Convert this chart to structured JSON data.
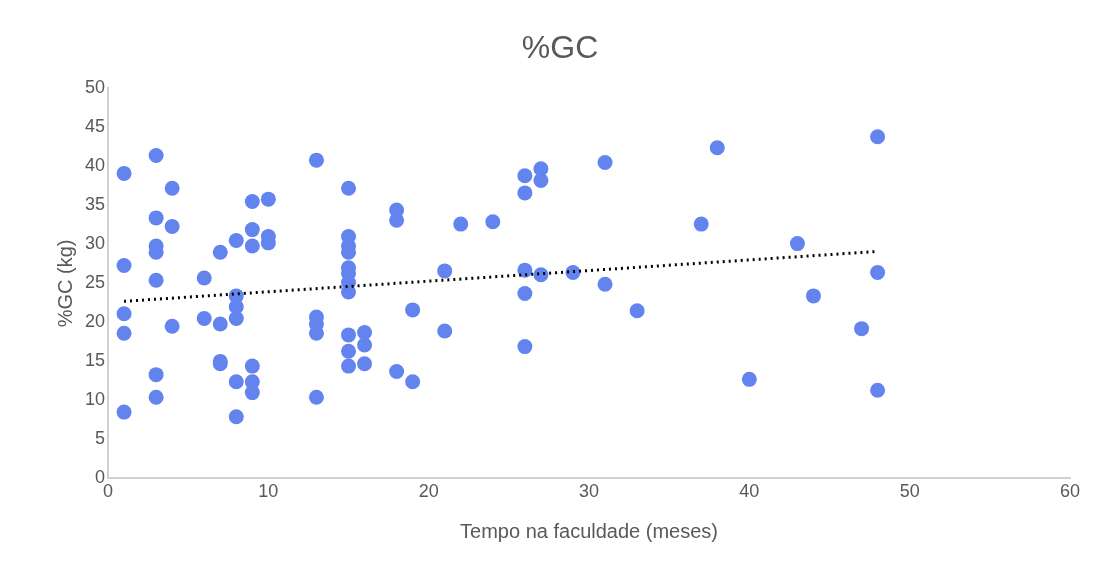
{
  "chart_data": {
    "type": "scatter",
    "title": "%GC",
    "xlabel": "Tempo na faculdade (meses)",
    "ylabel": "%GC (kg)",
    "xlim": [
      0,
      60
    ],
    "xticks": [
      0,
      10,
      20,
      30,
      40,
      50,
      60
    ],
    "ylim": [
      0,
      50
    ],
    "yticks": [
      0,
      5,
      10,
      15,
      20,
      25,
      30,
      35,
      40,
      45,
      50
    ],
    "grid": false,
    "legend": false,
    "marker": "circle",
    "series": [
      {
        "type": "scatter",
        "color": "#6384ef",
        "x": [
          1,
          1,
          1,
          1,
          1,
          3,
          3,
          3,
          3,
          3,
          3,
          3,
          4,
          4,
          4,
          6,
          6,
          7,
          7,
          7,
          7,
          8,
          8,
          8,
          8,
          8,
          8,
          9,
          9,
          9,
          9,
          9,
          9,
          10,
          10,
          10,
          13,
          13,
          13,
          13,
          13,
          15,
          15,
          15,
          15,
          15,
          15,
          15,
          15,
          15,
          15,
          15,
          16,
          16,
          16,
          18,
          18,
          18,
          19,
          19,
          21,
          21,
          22,
          24,
          26,
          26,
          26,
          26,
          26,
          27,
          27,
          27,
          29,
          31,
          31,
          33,
          37,
          38,
          40,
          43,
          44,
          47,
          48,
          48,
          48
        ],
        "values": [
          39.1,
          27.3,
          21.1,
          18.6,
          8.5,
          41.4,
          33.4,
          29.8,
          29,
          25.4,
          13.3,
          10.4,
          37.2,
          32.3,
          19.5,
          25.7,
          20.5,
          29,
          19.8,
          15,
          14.7,
          30.5,
          23.4,
          22,
          20.5,
          12.4,
          7.9,
          35.5,
          31.9,
          29.8,
          14.4,
          12.4,
          11,
          35.8,
          31,
          30.2,
          40.8,
          20.7,
          19.8,
          18.6,
          10.4,
          37.2,
          31,
          29.8,
          29,
          27,
          26.3,
          25.1,
          23.9,
          18.4,
          16.3,
          14.4,
          18.7,
          17.1,
          14.7,
          34.4,
          33.1,
          13.7,
          21.6,
          12.4,
          26.6,
          18.9,
          32.6,
          32.9,
          38.8,
          36.6,
          26.7,
          23.7,
          16.9,
          39.7,
          38.2,
          26.1,
          26.4,
          40.5,
          24.9,
          21.5,
          32.6,
          42.4,
          12.7,
          30.1,
          23.4,
          19.2,
          43.8,
          26.4,
          11.3
        ]
      },
      {
        "type": "line",
        "color": "#000000",
        "line_style": "dotted",
        "marker": "none",
        "x": [
          1,
          48
        ],
        "values": [
          22.7,
          29.1
        ]
      }
    ]
  }
}
